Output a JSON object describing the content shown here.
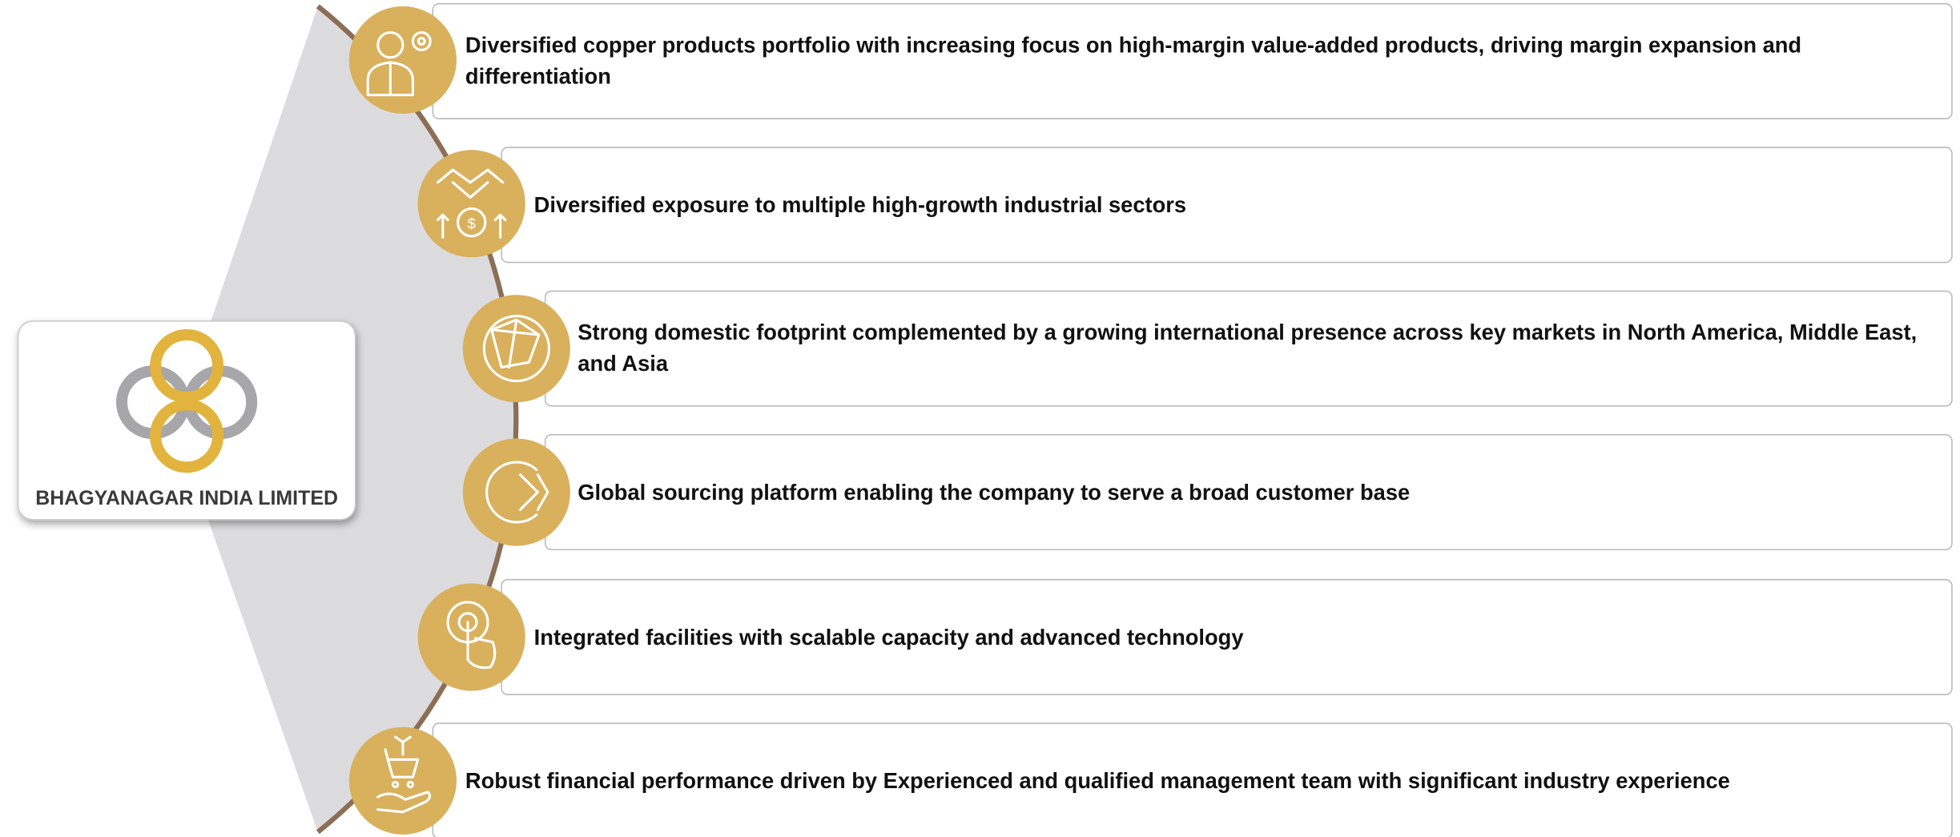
{
  "logo": {
    "company": "BHAGYANAGAR INDIA LIMITED"
  },
  "items": [
    {
      "text": "Diversified copper products portfolio with increasing focus on high-margin value-added products, driving margin expansion and differentiation"
    },
    {
      "text": "Diversified exposure to multiple high-growth industrial sectors"
    },
    {
      "text": "Strong domestic footprint complemented by a growing international presence across key markets in North America, Middle East, and Asia"
    },
    {
      "text": "Global sourcing platform enabling the company to serve a broad customer base"
    },
    {
      "text": "Integrated facilities with scalable capacity and advanced technology"
    },
    {
      "text": "Robust financial performance driven by Experienced and qualified management team with significant industry experience"
    }
  ]
}
